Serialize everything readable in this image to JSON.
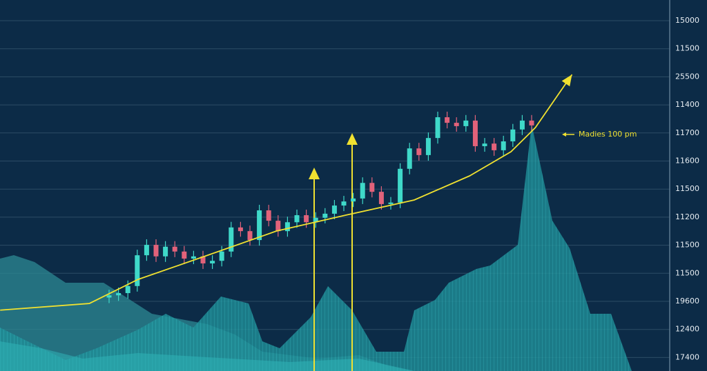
{
  "chart_data": {
    "type": "candlestick",
    "ylim": [
      0,
      100
    ],
    "right_axis_labels": [
      "15000",
      "11500",
      "25500",
      "11400",
      "11700",
      "11600",
      "11500",
      "11200",
      "11500",
      "11500",
      "19600",
      "12400",
      "17400"
    ],
    "up_color": "#3fd9c9",
    "down_color": "#e2627a",
    "open": [
      19.8,
      20.4,
      21.0,
      22.9,
      31.2,
      34.0,
      30.9,
      33.5,
      32.2,
      30.3,
      30.9,
      29.0,
      29.7,
      32.2,
      38.7,
      37.7,
      35.3,
      43.3,
      40.5,
      37.7,
      40.1,
      42.0,
      40.1,
      41.3,
      42.4,
      44.6,
      45.7,
      46.5,
      50.7,
      48.3,
      45.0,
      45.4,
      54.5,
      60.0,
      58.2,
      62.8,
      68.4,
      66.9,
      66.0,
      67.5,
      60.6,
      61.3,
      59.5,
      61.9,
      65.1,
      67.5
    ],
    "close": [
      20.4,
      21.0,
      22.9,
      31.2,
      34.0,
      30.9,
      33.5,
      32.2,
      30.3,
      30.9,
      29.0,
      29.7,
      32.2,
      38.7,
      37.7,
      35.3,
      43.3,
      40.5,
      37.7,
      40.1,
      42.0,
      40.1,
      41.3,
      42.4,
      44.6,
      45.7,
      46.5,
      50.7,
      48.3,
      45.0,
      45.4,
      54.5,
      60.0,
      58.2,
      62.8,
      68.4,
      66.9,
      66.0,
      67.5,
      60.6,
      61.3,
      59.5,
      61.9,
      65.1,
      67.5,
      66.2
    ],
    "high": [
      21.9,
      22.5,
      24.4,
      32.7,
      35.5,
      35.5,
      35.0,
      35.0,
      33.7,
      32.4,
      32.4,
      31.2,
      33.7,
      40.2,
      40.2,
      39.2,
      44.8,
      44.8,
      42.0,
      41.6,
      43.5,
      43.5,
      42.8,
      43.9,
      46.1,
      47.2,
      48.0,
      52.2,
      52.2,
      49.8,
      46.9,
      56.0,
      61.5,
      61.5,
      64.3,
      69.9,
      69.9,
      68.4,
      69.0,
      69.0,
      62.8,
      62.8,
      63.4,
      66.6,
      69.0,
      69.0
    ],
    "low": [
      18.3,
      18.9,
      19.5,
      21.4,
      29.7,
      29.4,
      29.4,
      30.7,
      28.8,
      28.8,
      27.5,
      27.5,
      28.2,
      30.7,
      36.2,
      33.8,
      33.8,
      39.0,
      36.2,
      36.2,
      38.6,
      38.6,
      38.6,
      39.8,
      40.9,
      43.1,
      44.2,
      45.0,
      46.8,
      43.5,
      43.5,
      43.9,
      53.0,
      56.7,
      56.7,
      61.3,
      65.4,
      64.5,
      64.5,
      59.1,
      59.1,
      58.0,
      58.0,
      60.4,
      63.6,
      64.7
    ],
    "ma": {
      "color": "#f0e130",
      "x": [
        -11.6,
        -2.1,
        3.1,
        10.5,
        17.8,
        25.2,
        32.5,
        38.4,
        42.8,
        45.4,
        49.3
      ],
      "values": [
        16.4,
        18.2,
        24.7,
        31.2,
        37.7,
        42.0,
        46.1,
        52.6,
        59.1,
        65.6,
        79.9
      ]
    },
    "annotation": "Madies 100 pm"
  }
}
